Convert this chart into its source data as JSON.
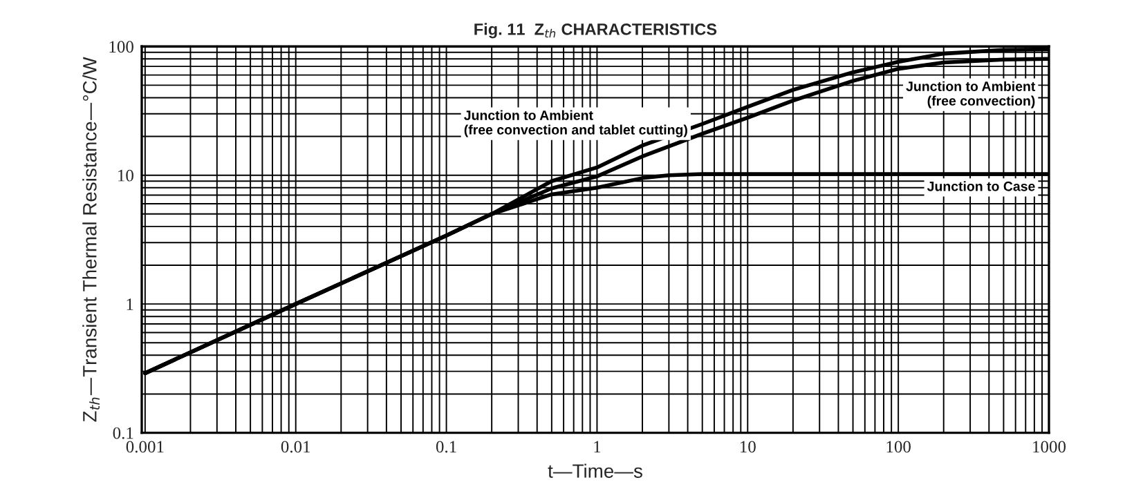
{
  "chart_data": {
    "type": "line",
    "title": "Fig. 11  Z$_{th}$ CHARACTERISTICS",
    "xlabel": "t—Time—s",
    "ylabel": "Z$_{th}$—Transient Thermal Resistance—°C/W",
    "log": "xy",
    "grid": true,
    "legend": false,
    "marker": "none",
    "line_style": "solid",
    "xlim": [
      0.00095,
      1000
    ],
    "ylim": [
      0.1,
      100
    ],
    "xticks": [
      0.001,
      0.01,
      0.1,
      1,
      10,
      100,
      1000
    ],
    "yticks": [
      0.1,
      1,
      10,
      100
    ],
    "series": [
      {
        "name": "Junction to Ambient\n(free convection and tablet cutting)",
        "color": "#000000",
        "x": [
          0.001,
          0.01,
          0.1,
          0.2,
          0.5,
          1,
          2,
          5,
          10,
          20,
          50,
          100,
          200,
          500,
          1000
        ],
        "values": [
          0.29,
          1.0,
          3.4,
          5,
          9,
          11.5,
          17,
          25,
          34,
          46,
          63,
          76,
          88,
          94,
          95
        ]
      },
      {
        "name": "Junction to Ambient\n(free convection)",
        "color": "#000000",
        "x": [
          0.001,
          0.01,
          0.1,
          0.2,
          0.5,
          1,
          2,
          5,
          10,
          20,
          50,
          100,
          200,
          500,
          1000
        ],
        "values": [
          0.29,
          1.0,
          3.4,
          5,
          7.9,
          9.8,
          14,
          21,
          28,
          38,
          54,
          67,
          75,
          79,
          80
        ]
      },
      {
        "name": "Junction to Case",
        "color": "#000000",
        "x": [
          0.001,
          0.01,
          0.1,
          0.2,
          0.5,
          1,
          2,
          3,
          5,
          10,
          100,
          1000
        ],
        "values": [
          0.29,
          1.0,
          3.4,
          5,
          7.1,
          8,
          9.5,
          10,
          10.2,
          10.2,
          10.2,
          10.2
        ]
      }
    ]
  }
}
